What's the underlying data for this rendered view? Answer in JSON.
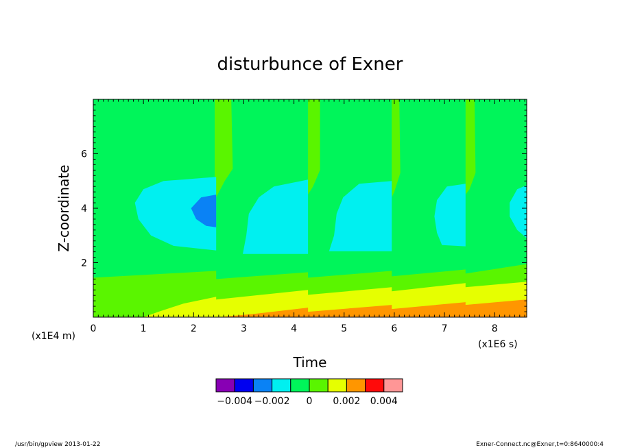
{
  "chart_data": {
    "type": "heatmap",
    "title": "disturbunce of Exner",
    "xlabel": "Time",
    "ylabel": "Z-coordinate",
    "x_unit": "(x1E6 s)",
    "y_unit": "(x1E4 m)",
    "xlim": [
      0,
      8.64
    ],
    "ylim": [
      0,
      8
    ],
    "x_ticks": [
      "0",
      "1",
      "2",
      "3",
      "4",
      "5",
      "6",
      "7",
      "8"
    ],
    "y_ticks": [
      "2",
      "4",
      "6"
    ],
    "colorbar": {
      "levels": [
        -0.005,
        -0.004,
        -0.003,
        -0.002,
        -0.001,
        0,
        0.001,
        0.002,
        0.003,
        0.004,
        0.005
      ],
      "labels": [
        "-0.004",
        "-0.002",
        "0",
        "0.002",
        "0.004"
      ],
      "colors": [
        "#8800b4",
        "#0000f0",
        "#0a82f5",
        "#00f0f0",
        "#00f55a",
        "#5af500",
        "#e6ff00",
        "#ff9600",
        "#ff0a0a",
        "#ff9696"
      ]
    },
    "background_band": "0 to 0.001",
    "cycle_resets_x": [
      2.45,
      4.28,
      5.95,
      7.42
    ],
    "regions": [
      {
        "band": "0.001 to 0.002",
        "x": [
          0,
          8.64
        ],
        "z_from_bottom": 0,
        "z_top": [
          1.45,
          1.95
        ]
      },
      {
        "band": "0.002 to 0.003",
        "x": [
          1.0,
          8.64
        ],
        "z_from_bottom": 0,
        "z_top": [
          0.0,
          1.3
        ]
      },
      {
        "band": "0.003 to 0.004",
        "x": [
          2.5,
          8.64
        ],
        "z_from_bottom": 0,
        "z_top": [
          0.0,
          0.65
        ]
      },
      {
        "band": "-0.001 to 0",
        "note": "positive-to-negative lobes around z 2.4 to 5.2 in each cycle"
      },
      {
        "band": "-0.002 to -0.001",
        "x": [
          1.95,
          2.45
        ],
        "z": [
          3.3,
          4.5
        ]
      }
    ]
  },
  "footer": {
    "left": "/usr/bin/gpview   2013-01-22",
    "right": "Exner-Connect.nc@Exner,t=0:8640000:4"
  }
}
